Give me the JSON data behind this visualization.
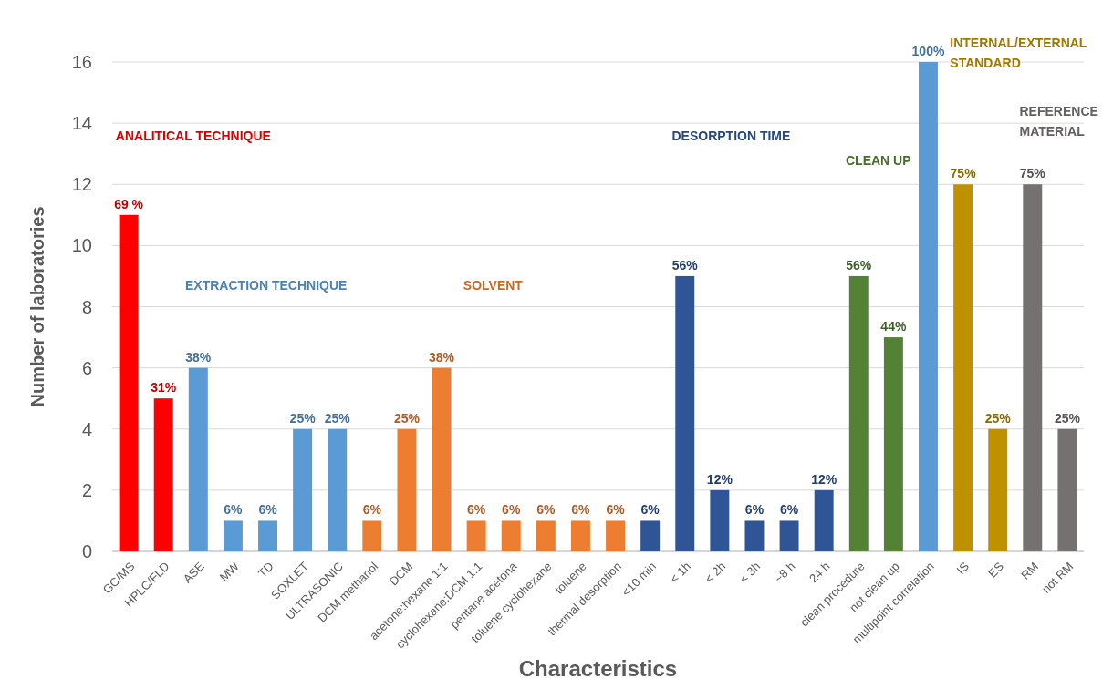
{
  "chart_data": {
    "type": "bar",
    "xlabel": "Characteristics",
    "ylabel": "Number of laboratories",
    "categories": [
      "GC/MS",
      "HPLC/FLD",
      "ASE",
      "MW",
      "TD",
      "SOXLET",
      "ULTRASONIC",
      "DCM methanol",
      "DCM",
      "acetone:hexane 1:1",
      "cyclohexane:DCM 1:1",
      "pentane acetona",
      "toluene cyclohexane",
      "toluene",
      "thermal desorption",
      "<10 min",
      "< 1h",
      "< 2h",
      "< 3h",
      "~8 h",
      "24 h",
      "clean procedure",
      "not clean up",
      "multipoint correlation",
      "IS",
      "ES",
      "RM",
      "not RM"
    ],
    "values": [
      11,
      5,
      6,
      1,
      1,
      4,
      4,
      1,
      4,
      6,
      1,
      1,
      1,
      1,
      1,
      1,
      9,
      2,
      1,
      1,
      2,
      9,
      7,
      16,
      12,
      4,
      12,
      4
    ],
    "colors": [
      "#ff0000",
      "#ff0000",
      "#5b9bd5",
      "#5b9bd5",
      "#5b9bd5",
      "#5b9bd5",
      "#5b9bd5",
      "#ed7d31",
      "#ed7d31",
      "#ed7d31",
      "#ed7d31",
      "#ed7d31",
      "#ed7d31",
      "#ed7d31",
      "#ed7d31",
      "#2f5597",
      "#2f5597",
      "#2f5597",
      "#2f5597",
      "#2f5597",
      "#2f5597",
      "#548235",
      "#548235",
      "#5b9bd5",
      "#bf9000",
      "#bf9000",
      "#767171",
      "#767171"
    ],
    "ylim": [
      0,
      16
    ],
    "yticks": [
      0,
      2,
      4,
      6,
      8,
      10,
      12,
      14,
      16
    ],
    "grid": "y",
    "annotations": [
      "ANALITICAL TECHNIQUE",
      "EXTRACTION TECHNIQUE",
      "SOLVENT",
      "DESORPTION TIME",
      "CLEAN UP",
      "INTERNAL/EXTERNAL STANDARD",
      "REFERENCE MATERIAL",
      {
        "text": "69 %",
        "x": "GC/MS",
        "y": 11
      },
      {
        "text": "31%",
        "x": "HPLC/FLD",
        "y": 5
      },
      {
        "text": "38%",
        "x": "ASE",
        "y": 6
      },
      {
        "text": "6%",
        "x": "MW",
        "y": 1
      },
      {
        "text": "6%",
        "x": "TD",
        "y": 1
      },
      {
        "text": "25%",
        "x": "SOXLET",
        "y": 4
      },
      {
        "text": "25%",
        "x": "ULTRASONIC",
        "y": 4
      },
      {
        "text": "6%",
        "x": "DCM methanol",
        "y": 1
      },
      {
        "text": "25%",
        "x": "DCM",
        "y": 4
      },
      {
        "text": "38%",
        "x": "acetone:hexane 1:1",
        "y": 6
      },
      {
        "text": "6%",
        "x": "cyclohexane:DCM 1:1",
        "y": 1
      },
      {
        "text": "6%",
        "x": "pentane acetona",
        "y": 1
      },
      {
        "text": "6%",
        "x": "toluene cyclohexane",
        "y": 1
      },
      {
        "text": "6%",
        "x": "toluene",
        "y": 1
      },
      {
        "text": "6%",
        "x": "thermal desorption",
        "y": 1
      },
      {
        "text": "6%",
        "x": "<10 min",
        "y": 1
      },
      {
        "text": "56%",
        "x": "< 1h",
        "y": 9
      },
      {
        "text": "12%",
        "x": "< 2h",
        "y": 2
      },
      {
        "text": "6%",
        "x": "< 3h",
        "y": 1
      },
      {
        "text": "6%",
        "x": "~8 h",
        "y": 1
      },
      {
        "text": "12%",
        "x": "24 h",
        "y": 2
      },
      {
        "text": "56%",
        "x": "clean procedure",
        "y": 9
      },
      {
        "text": "44%",
        "x": "not clean up",
        "y": 7
      },
      {
        "text": "100%",
        "x": "multipoint correlation",
        "y": 16
      },
      {
        "text": "75%",
        "x": "IS",
        "y": 12
      },
      {
        "text": "25%",
        "x": "ES",
        "y": 4
      },
      {
        "text": "75%",
        "x": "RM",
        "y": 12
      },
      {
        "text": "25%",
        "x": "not RM",
        "y": 4
      }
    ]
  }
}
